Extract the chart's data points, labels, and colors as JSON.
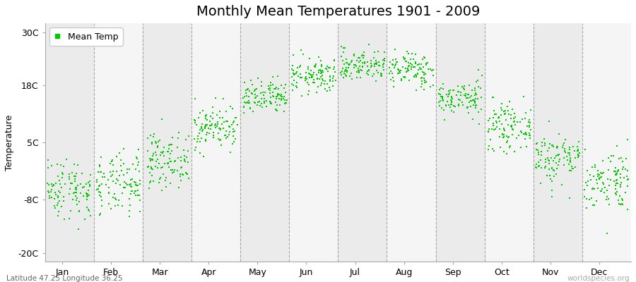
{
  "title": "Monthly Mean Temperatures 1901 - 2009",
  "ylabel": "Temperature",
  "xlabel_labels": [
    "Jan",
    "Feb",
    "Mar",
    "Apr",
    "May",
    "Jun",
    "Jul",
    "Aug",
    "Sep",
    "Oct",
    "Nov",
    "Dec"
  ],
  "ytick_labels": [
    "-20C",
    "-8C",
    "5C",
    "18C",
    "30C"
  ],
  "ytick_values": [
    -20,
    -8,
    5,
    18,
    30
  ],
  "ylim": [
    -22,
    32
  ],
  "dot_color": "#00cc00",
  "bg_color": "#ffffff",
  "plot_bg_color_light": "#f0f0f0",
  "plot_bg_color_dark": "#e4e4e4",
  "grid_color": "#888888",
  "legend_label": "Mean Temp",
  "subtitle": "Latitude 47.25 Longitude 36.25",
  "watermark": "worldspecies.org",
  "monthly_means": [
    -5.5,
    -4.8,
    1.0,
    8.5,
    15.0,
    20.0,
    22.5,
    21.5,
    15.0,
    8.5,
    1.5,
    -3.5
  ],
  "monthly_stds": [
    3.5,
    3.5,
    3.0,
    2.5,
    2.0,
    2.0,
    1.8,
    2.0,
    2.0,
    2.5,
    3.0,
    3.5
  ],
  "n_years": 109,
  "title_fontsize": 14,
  "label_fontsize": 9,
  "tick_fontsize": 9
}
